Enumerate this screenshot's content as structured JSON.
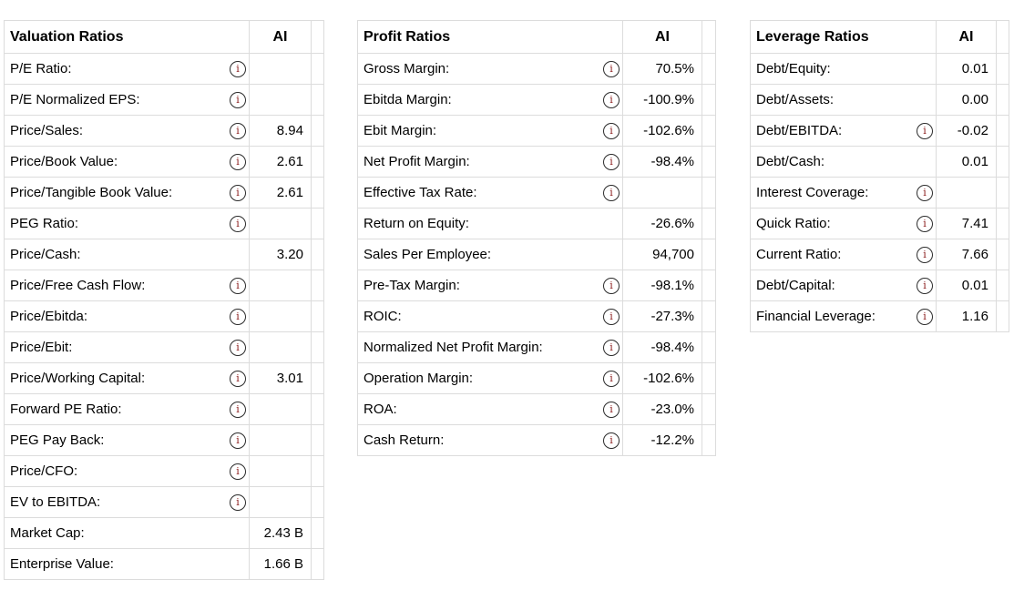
{
  "icons": {
    "info_glyph": "i"
  },
  "colors": {
    "text": "#000000",
    "grid_border": "#dcdcdc",
    "info_icon_ring": "#2b2b2b",
    "info_icon_glyph": "#8b1c1c",
    "background": "#ffffff"
  },
  "tables": [
    {
      "title": "Valuation Ratios",
      "value_header": "AI",
      "rows": [
        {
          "label": "P/E Ratio:",
          "info": true,
          "value": ""
        },
        {
          "label": "P/E Normalized EPS:",
          "info": true,
          "value": ""
        },
        {
          "label": "Price/Sales:",
          "info": true,
          "value": "8.94"
        },
        {
          "label": "Price/Book Value:",
          "info": true,
          "value": "2.61"
        },
        {
          "label": "Price/Tangible Book Value:",
          "info": true,
          "value": "2.61"
        },
        {
          "label": "PEG Ratio:",
          "info": true,
          "value": ""
        },
        {
          "label": "Price/Cash:",
          "info": false,
          "value": "3.20"
        },
        {
          "label": "Price/Free Cash Flow:",
          "info": true,
          "value": ""
        },
        {
          "label": "Price/Ebitda:",
          "info": true,
          "value": ""
        },
        {
          "label": "Price/Ebit:",
          "info": true,
          "value": ""
        },
        {
          "label": "Price/Working Capital:",
          "info": true,
          "value": "3.01"
        },
        {
          "label": "Forward PE Ratio:",
          "info": true,
          "value": ""
        },
        {
          "label": "PEG Pay Back:",
          "info": true,
          "value": ""
        },
        {
          "label": "Price/CFO:",
          "info": true,
          "value": ""
        },
        {
          "label": "EV to EBITDA:",
          "info": true,
          "value": ""
        },
        {
          "label": "Market Cap:",
          "info": false,
          "value": "2.43 B"
        },
        {
          "label": "Enterprise Value:",
          "info": false,
          "value": "1.66 B"
        }
      ]
    },
    {
      "title": "Profit Ratios",
      "value_header": "AI",
      "rows": [
        {
          "label": "Gross Margin:",
          "info": true,
          "value": "70.5%"
        },
        {
          "label": "Ebitda Margin:",
          "info": true,
          "value": "-100.9%"
        },
        {
          "label": "Ebit Margin:",
          "info": true,
          "value": "-102.6%"
        },
        {
          "label": "Net Profit Margin:",
          "info": true,
          "value": "-98.4%"
        },
        {
          "label": "Effective Tax Rate:",
          "info": true,
          "value": ""
        },
        {
          "label": "Return on Equity:",
          "info": false,
          "value": "-26.6%"
        },
        {
          "label": "Sales Per Employee:",
          "info": false,
          "value": "94,700"
        },
        {
          "label": "Pre-Tax Margin:",
          "info": true,
          "value": "-98.1%"
        },
        {
          "label": "ROIC:",
          "info": true,
          "value": "-27.3%"
        },
        {
          "label": "Normalized Net Profit Margin:",
          "info": true,
          "value": "-98.4%"
        },
        {
          "label": "Operation Margin:",
          "info": true,
          "value": "-102.6%"
        },
        {
          "label": "ROA:",
          "info": true,
          "value": "-23.0%"
        },
        {
          "label": "Cash Return:",
          "info": true,
          "value": "-12.2%"
        }
      ]
    },
    {
      "title": "Leverage Ratios",
      "value_header": "AI",
      "rows": [
        {
          "label": "Debt/Equity:",
          "info": false,
          "value": "0.01"
        },
        {
          "label": "Debt/Assets:",
          "info": false,
          "value": "0.00"
        },
        {
          "label": "Debt/EBITDA:",
          "info": true,
          "value": "-0.02"
        },
        {
          "label": "Debt/Cash:",
          "info": false,
          "value": "0.01"
        },
        {
          "label": "Interest Coverage:",
          "info": true,
          "value": ""
        },
        {
          "label": "Quick Ratio:",
          "info": true,
          "value": "7.41"
        },
        {
          "label": "Current Ratio:",
          "info": true,
          "value": "7.66"
        },
        {
          "label": "Debt/Capital:",
          "info": true,
          "value": "0.01"
        },
        {
          "label": "Financial Leverage:",
          "info": true,
          "value": "1.16"
        }
      ]
    }
  ]
}
